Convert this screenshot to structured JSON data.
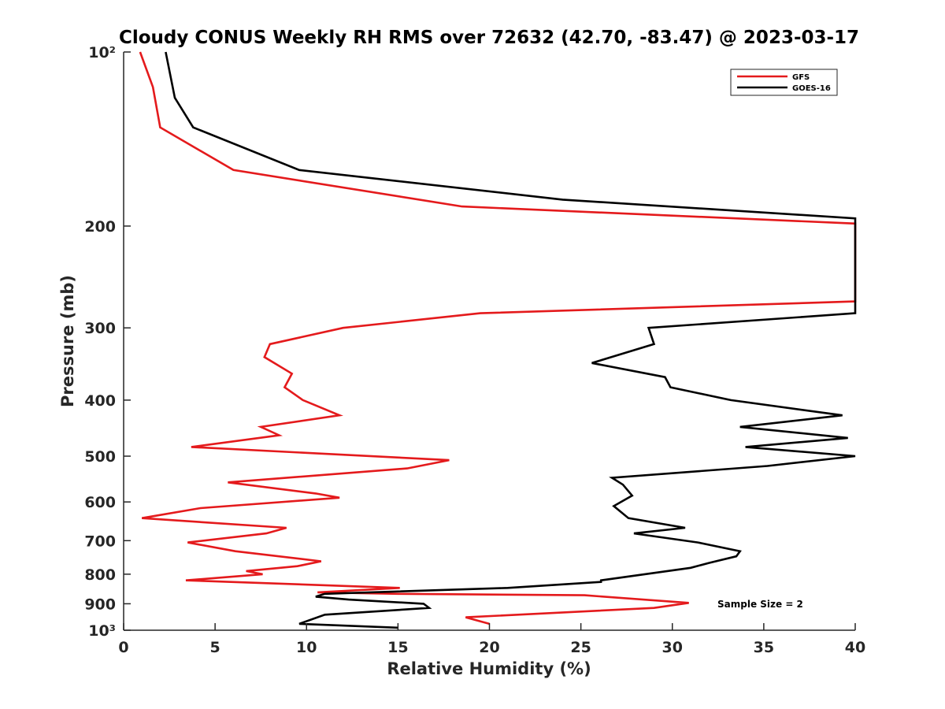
{
  "chart_data": {
    "type": "line",
    "title": "Cloudy CONUS Weekly RH RMS over 72632 (42.70, -83.47) @ 2023-03-17",
    "xlabel": "Relative Humidity (%)",
    "ylabel": "Pressure (mb)",
    "xlim": [
      0,
      40
    ],
    "ylim": [
      100,
      1000
    ],
    "y_scale": "log",
    "y_reversed": true,
    "x_ticks": [
      0,
      5,
      10,
      15,
      20,
      25,
      30,
      35,
      40
    ],
    "x_tick_labels": [
      "0",
      "5",
      "10",
      "15",
      "20",
      "25",
      "30",
      "35",
      "40"
    ],
    "y_ticks": [
      100,
      200,
      300,
      400,
      500,
      600,
      700,
      800,
      900,
      1000
    ],
    "y_tick_labels": [
      "10²",
      "200",
      "300",
      "400",
      "500",
      "600",
      "700",
      "800",
      "900",
      "10³"
    ],
    "grid": false,
    "legend_position": "top-right",
    "annotation": "Sample Size = 2",
    "series": [
      {
        "name": "GFS",
        "color": "#e41a1c",
        "points": [
          [
            0.9,
            100
          ],
          [
            1.6,
            115
          ],
          [
            2.0,
            135
          ],
          [
            6.0,
            160
          ],
          [
            18.5,
            185
          ],
          [
            40,
            198
          ],
          [
            40,
            270
          ],
          [
            19.5,
            283
          ],
          [
            12.0,
            300
          ],
          [
            8.0,
            320
          ],
          [
            7.7,
            337
          ],
          [
            9.2,
            360
          ],
          [
            8.8,
            380
          ],
          [
            9.8,
            400
          ],
          [
            11.8,
            425
          ],
          [
            7.5,
            445
          ],
          [
            8.5,
            460
          ],
          [
            3.7,
            482
          ],
          [
            17.8,
            508
          ],
          [
            15.5,
            525
          ],
          [
            5.7,
            555
          ],
          [
            10.5,
            580
          ],
          [
            11.8,
            590
          ],
          [
            4.2,
            615
          ],
          [
            1.0,
            640
          ],
          [
            8.9,
            665
          ],
          [
            7.8,
            680
          ],
          [
            3.5,
            705
          ],
          [
            6.1,
            730
          ],
          [
            10.8,
            760
          ],
          [
            9.5,
            775
          ],
          [
            6.7,
            790
          ],
          [
            7.6,
            800
          ],
          [
            3.4,
            820
          ],
          [
            15.1,
            845
          ],
          [
            10.6,
            860
          ],
          [
            15.0,
            865
          ],
          [
            25.2,
            870
          ],
          [
            30.9,
            897
          ],
          [
            29.0,
            915
          ],
          [
            18.7,
            950
          ],
          [
            20.0,
            975
          ]
        ]
      },
      {
        "name": "GOES-16",
        "color": "#000000",
        "points": [
          [
            2.3,
            100
          ],
          [
            2.8,
            120
          ],
          [
            3.8,
            135
          ],
          [
            9.6,
            160
          ],
          [
            24.0,
            180
          ],
          [
            40,
            194
          ],
          [
            40,
            283
          ],
          [
            28.7,
            300
          ],
          [
            29.0,
            320
          ],
          [
            25.6,
            345
          ],
          [
            29.6,
            365
          ],
          [
            29.9,
            380
          ],
          [
            33.2,
            400
          ],
          [
            39.3,
            425
          ],
          [
            33.7,
            445
          ],
          [
            39.6,
            465
          ],
          [
            34.0,
            482
          ],
          [
            40.0,
            500
          ],
          [
            35.2,
            520
          ],
          [
            26.7,
            545
          ],
          [
            27.3,
            560
          ],
          [
            27.8,
            585
          ],
          [
            26.8,
            610
          ],
          [
            27.6,
            640
          ],
          [
            30.7,
            665
          ],
          [
            27.9,
            680
          ],
          [
            31.4,
            705
          ],
          [
            33.7,
            730
          ],
          [
            33.5,
            745
          ],
          [
            32.0,
            765
          ],
          [
            31.0,
            780
          ],
          [
            26.1,
            820
          ],
          [
            26.1,
            825
          ],
          [
            21.0,
            845
          ],
          [
            11.0,
            865
          ],
          [
            10.5,
            875
          ],
          [
            12.3,
            885
          ],
          [
            16.4,
            900
          ],
          [
            16.7,
            915
          ],
          [
            11.0,
            940
          ],
          [
            9.6,
            975
          ],
          [
            15.0,
            990
          ]
        ]
      }
    ]
  }
}
